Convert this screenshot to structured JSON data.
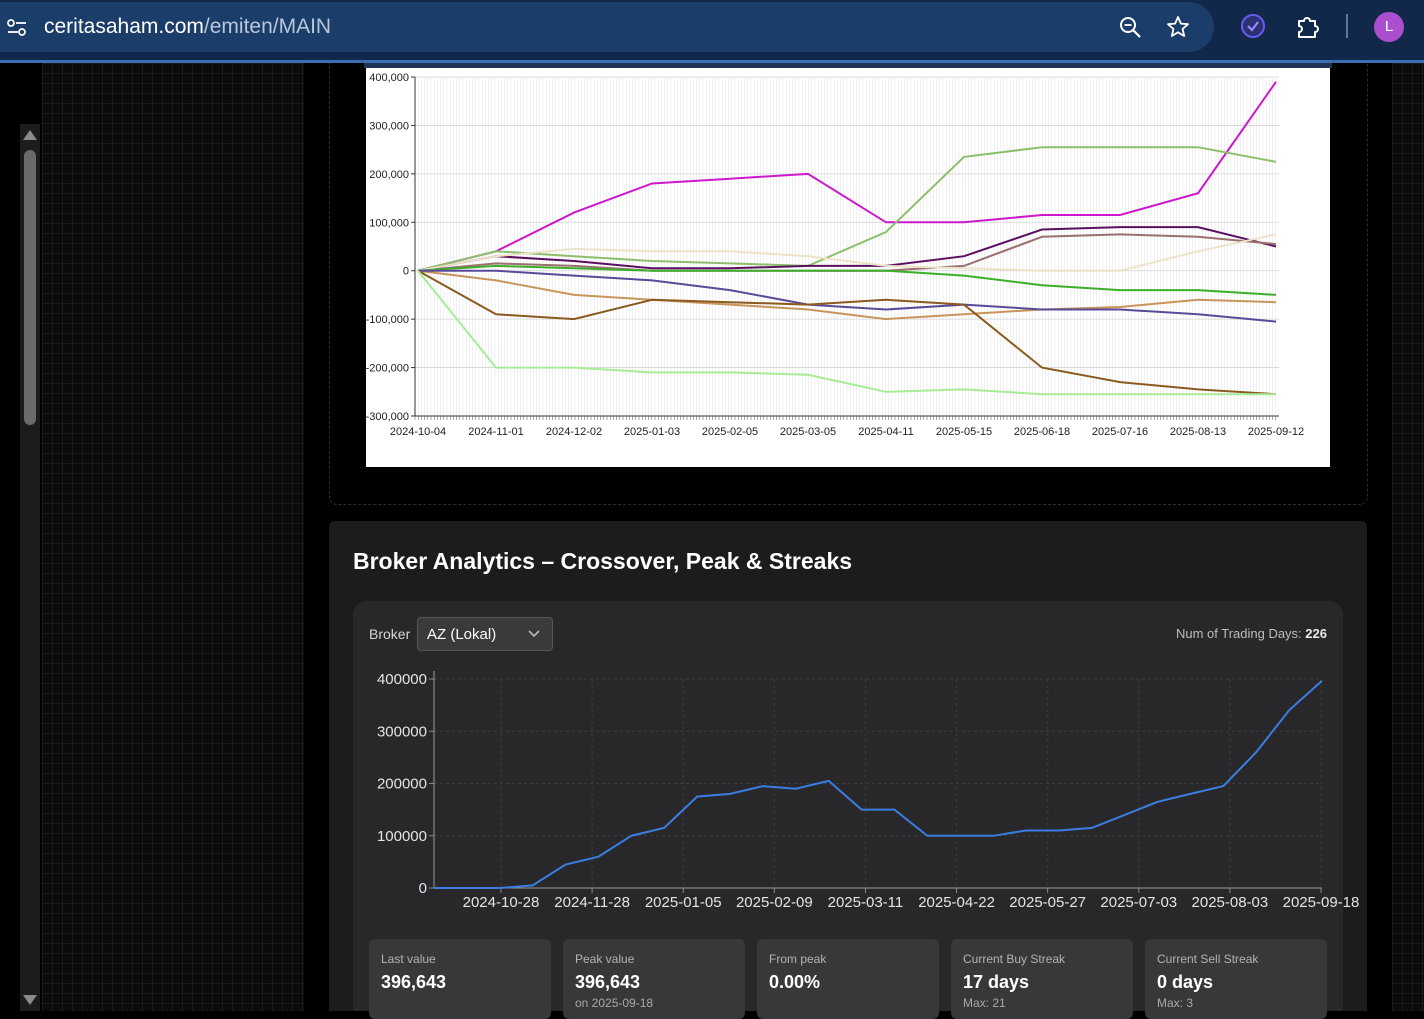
{
  "browser": {
    "url_host": "ceritasaham.com",
    "url_path": "/emiten/MAIN",
    "avatar_letter": "L",
    "icons": [
      "site-controls-icon",
      "zoom-icon",
      "star-icon",
      "extension-check-icon",
      "puzzle-extensions-icon"
    ]
  },
  "chart1": {
    "y_tick_labels": [
      "400,000",
      "300,000",
      "200,000",
      "100,000",
      "0",
      "-100,000",
      "-200,000",
      "-300,000"
    ],
    "x_tick_labels": [
      "2024-10-04",
      "2024-11-01",
      "2024-12-02",
      "2025-01-03",
      "2025-02-05",
      "2025-03-05",
      "2025-04-11",
      "2025-05-15",
      "2025-06-18",
      "2025-07-16",
      "2025-08-13",
      "2025-09-12"
    ]
  },
  "analytics": {
    "title": "Broker Analytics – Crossover, Peak & Streaks",
    "broker_label": "Broker",
    "broker_value": "AZ (Lokal)",
    "trading_days_label": "Num of Trading Days:",
    "trading_days_value": "226",
    "stats": [
      {
        "label": "Last value",
        "value": "396,643",
        "sub": ""
      },
      {
        "label": "Peak value",
        "value": "396,643",
        "sub": "on 2025-09-18"
      },
      {
        "label": "From peak",
        "value": "0.00%",
        "sub": ""
      },
      {
        "label": "Current Buy Streak",
        "value": "17 days",
        "sub": "Max: 21"
      },
      {
        "label": "Current Sell Streak",
        "value": "0 days",
        "sub": "Max: 3"
      }
    ]
  },
  "chart_data": [
    {
      "type": "line",
      "ylim": [
        -300000,
        400000
      ],
      "x_dates": [
        "2024-10-04",
        "2024-11-01",
        "2024-12-02",
        "2025-01-03",
        "2025-02-05",
        "2025-03-05",
        "2025-04-11",
        "2025-05-15",
        "2025-06-18",
        "2025-07-16",
        "2025-08-13",
        "2025-09-12"
      ],
      "series": [
        {
          "color": "#cc19cc",
          "values": [
            0,
            40000,
            120000,
            180000,
            190000,
            200000,
            100000,
            100000,
            115000,
            115000,
            160000,
            390000
          ]
        },
        {
          "color": "#8cbf6b",
          "values": [
            0,
            40000,
            30000,
            20000,
            15000,
            10000,
            80000,
            235000,
            255000,
            255000,
            255000,
            225000
          ]
        },
        {
          "color": "#5a1060",
          "values": [
            0,
            30000,
            20000,
            5000,
            5000,
            10000,
            10000,
            30000,
            85000,
            90000,
            90000,
            50000
          ]
        },
        {
          "color": "#9a7070",
          "values": [
            0,
            15000,
            10000,
            0,
            0,
            0,
            0,
            10000,
            70000,
            75000,
            70000,
            55000
          ]
        },
        {
          "color": "#ece3c8",
          "values": [
            0,
            30000,
            45000,
            40000,
            40000,
            30000,
            10000,
            5000,
            0,
            0,
            40000,
            75000
          ]
        },
        {
          "color": "#3cae2a",
          "values": [
            0,
            10000,
            5000,
            0,
            0,
            0,
            0,
            -10000,
            -30000,
            -40000,
            -40000,
            -50000
          ]
        },
        {
          "color": "#c8955a",
          "values": [
            0,
            -20000,
            -50000,
            -60000,
            -70000,
            -80000,
            -100000,
            -90000,
            -80000,
            -75000,
            -60000,
            -65000
          ]
        },
        {
          "color": "#5a4a9a",
          "values": [
            0,
            0,
            -10000,
            -20000,
            -40000,
            -70000,
            -80000,
            -70000,
            -80000,
            -80000,
            -90000,
            -105000
          ]
        },
        {
          "color": "#8b5a1f",
          "values": [
            0,
            -90000,
            -100000,
            -60000,
            -65000,
            -70000,
            -60000,
            -70000,
            -200000,
            -230000,
            -245000,
            -255000
          ]
        },
        {
          "color": "#a8eb98",
          "values": [
            0,
            -200000,
            -200000,
            -210000,
            -210000,
            -215000,
            -250000,
            -245000,
            -255000,
            -255000,
            -255000,
            -255000
          ]
        }
      ]
    },
    {
      "type": "line",
      "ylim": [
        0,
        400000
      ],
      "y_ticks": [
        0,
        100000,
        200000,
        300000,
        400000
      ],
      "x_tick_labels": [
        "2024-10-28",
        "2024-11-28",
        "2025-01-05",
        "2025-02-09",
        "2025-03-11",
        "2025-04-22",
        "2025-05-27",
        "2025-07-03",
        "2025-08-03",
        "2025-09-18"
      ],
      "series": [
        {
          "color": "#3b7de0",
          "values": [
            0,
            0,
            0,
            5000,
            45000,
            60000,
            100000,
            115000,
            175000,
            180000,
            195000,
            190000,
            205000,
            150000,
            150000,
            100000,
            100000,
            100000,
            110000,
            110000,
            115000,
            140000,
            165000,
            180000,
            195000,
            260000,
            340000,
            396643
          ]
        }
      ]
    }
  ]
}
